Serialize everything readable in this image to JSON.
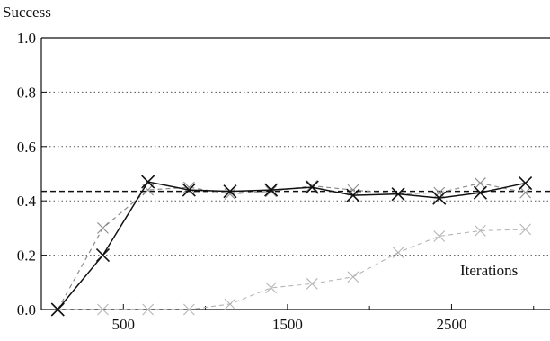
{
  "chart_data": {
    "type": "line",
    "title": "",
    "xlabel": "Iterations",
    "ylabel": "Success",
    "xlim": [
      0,
      3100
    ],
    "ylim": [
      0,
      1.0
    ],
    "xticks": [
      500,
      1500,
      2500
    ],
    "yticks": [
      0.0,
      0.2,
      0.4,
      0.6,
      0.8,
      1.0
    ],
    "ytick_labels": [
      "0.0",
      "0.2",
      "0.4",
      "0.6",
      "0.8",
      "1.0"
    ],
    "xtick_labels": [
      "500",
      "1500",
      "2500"
    ],
    "grid": "horizontal dotted",
    "series": [
      {
        "style": "solid-black-x",
        "x": [
          100,
          375,
          650,
          900,
          1150,
          1400,
          1650,
          1900,
          2175,
          2425,
          2675,
          2950
        ],
        "y": [
          0.0,
          0.2,
          0.47,
          0.44,
          0.435,
          0.44,
          0.45,
          0.42,
          0.425,
          0.41,
          0.43,
          0.465
        ]
      },
      {
        "style": "dashed-gray-x",
        "x": [
          100,
          375,
          650,
          900,
          1150,
          1400,
          1650,
          1900,
          2175,
          2425,
          2675,
          2950
        ],
        "y": [
          0.0,
          0.3,
          0.44,
          0.45,
          0.425,
          0.435,
          0.455,
          0.44,
          0.425,
          0.43,
          0.465,
          0.43
        ]
      },
      {
        "style": "dashed-lightgray-x",
        "x": [
          100,
          375,
          650,
          900,
          1150,
          1400,
          1650,
          1900,
          2175,
          2425,
          2675,
          2950
        ],
        "y": [
          0.0,
          0.0,
          0.0,
          0.0,
          0.02,
          0.08,
          0.095,
          0.12,
          0.21,
          0.27,
          0.29,
          0.295
        ]
      }
    ],
    "reference_line": {
      "y": 0.435,
      "style": "dashed-black"
    }
  },
  "colors": {
    "series_solid": "#111111",
    "series_dashed": "#8a8a8a",
    "series_light": "#b5b5b5",
    "axis": "#111111"
  }
}
